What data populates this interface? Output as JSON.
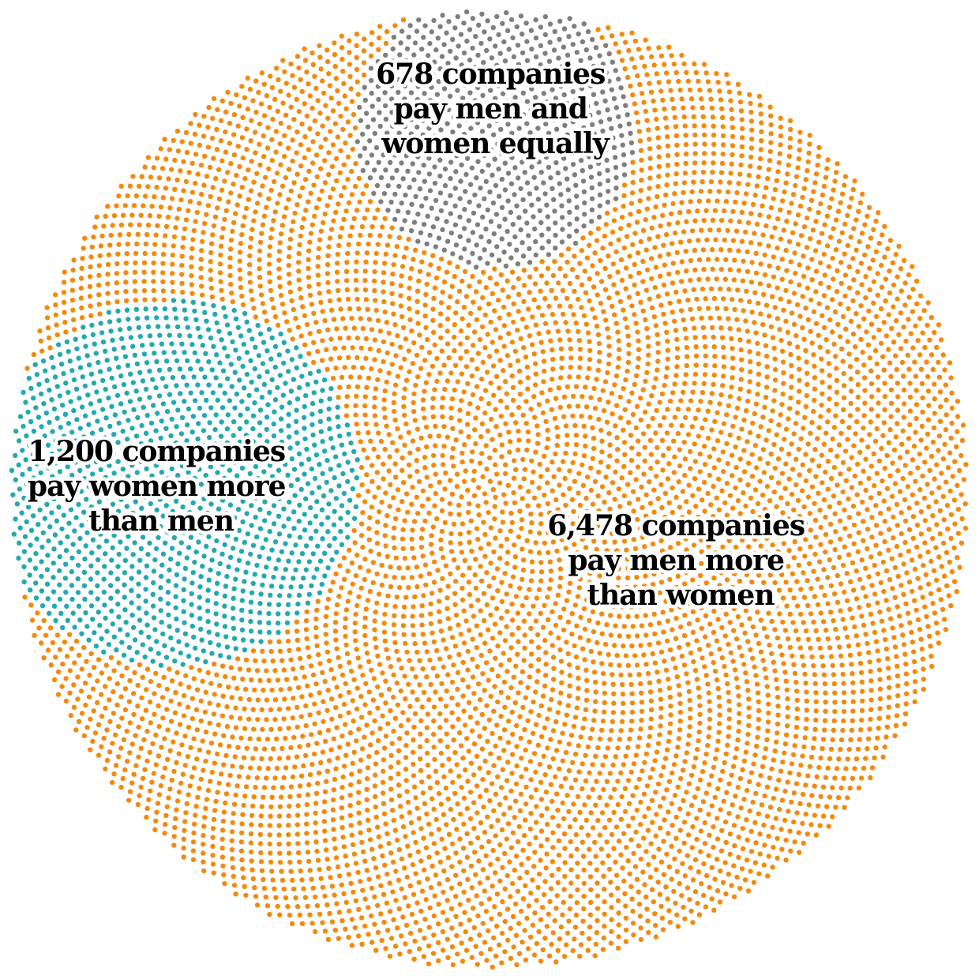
{
  "chart_data": {
    "type": "dot-cluster",
    "title": "",
    "total": 8356,
    "series": [
      {
        "name": "",
        "value": 6478,
        "label_lines": [
          "6,478 companies",
          "pay men more",
          "than women"
        ],
        "color": "#f28a10"
      },
      {
        "name": "",
        "value": 1200,
        "label_lines": [
          "1,200 companies",
          "pay women more",
          "than men"
        ],
        "color": "#23a9b0"
      },
      {
        "name": "",
        "value": 678,
        "label_lines": [
          "678 companies",
          "pay men and",
          "women equally"
        ],
        "color": "#7f7f7f"
      }
    ]
  }
}
